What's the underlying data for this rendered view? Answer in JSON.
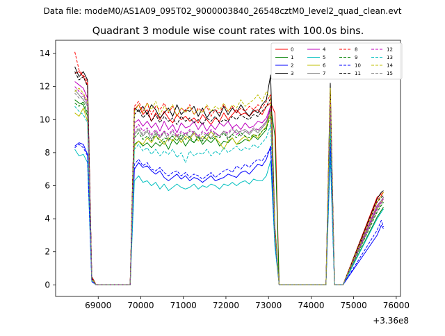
{
  "figure": {
    "suptitle": "Data file: modeM0/AS1A09_095T02_9000003840_26548cztM0_level2_quad_clean.evt"
  },
  "chart_data": {
    "type": "line",
    "title": "Quadrant 3 module wise count rates with 100.0s bins.",
    "xlabel": "",
    "ylabel": "",
    "x_offset_label": "+3.36e8",
    "xlim": [
      68000,
      76100
    ],
    "ylim": [
      -0.7,
      14.8
    ],
    "x_ticks": [
      69000,
      70000,
      71000,
      72000,
      73000,
      74000,
      75000,
      76000
    ],
    "x_tick_labels": [
      "69000",
      "70000",
      "71000",
      "72000",
      "73000",
      "74000",
      "75000",
      "76000"
    ],
    "y_ticks": [
      0,
      2,
      4,
      6,
      8,
      10,
      12,
      14
    ],
    "y_tick_labels": [
      "0",
      "2",
      "4",
      "6",
      "8",
      "10",
      "12",
      "14"
    ],
    "grid": false,
    "legend_position": "top-right",
    "legend_columns": 4,
    "x": [
      68450,
      68550,
      68650,
      68750,
      68850,
      68950,
      69750,
      69850,
      69950,
      70050,
      70150,
      70250,
      70350,
      70450,
      70550,
      70650,
      70750,
      70850,
      70950,
      71050,
      71150,
      71250,
      71350,
      71450,
      71550,
      71650,
      71750,
      71850,
      71950,
      72050,
      72150,
      72250,
      72350,
      72450,
      72550,
      72650,
      72750,
      72850,
      72950,
      73050,
      73150,
      73250,
      74350,
      74450,
      74550,
      74650,
      74750,
      75550,
      75650,
      75700
    ],
    "series": [
      {
        "name": "0",
        "color": "#ff0000",
        "dash": false,
        "values": [
          12.8,
          12.9,
          12.6,
          12.1,
          0.4,
          0.0,
          0.0,
          10.6,
          10.9,
          10.3,
          10.6,
          9.9,
          10.4,
          10.0,
          10.5,
          10.1,
          9.8,
          10.3,
          10.0,
          10.2,
          9.9,
          10.1,
          9.8,
          10.3,
          10.0,
          9.7,
          10.1,
          9.9,
          10.4,
          10.0,
          10.3,
          10.6,
          10.3,
          10.4,
          10.2,
          10.5,
          10.6,
          10.3,
          10.8,
          11.0,
          10.4,
          0.0,
          0.0,
          11.4,
          0.0,
          0.0,
          0.0,
          5.3,
          5.5,
          5.6
        ]
      },
      {
        "name": "1",
        "color": "#008000",
        "dash": false,
        "values": [
          11.2,
          11.0,
          10.9,
          10.2,
          0.3,
          0.0,
          0.0,
          8.5,
          8.7,
          8.4,
          8.6,
          8.3,
          8.6,
          8.4,
          8.7,
          8.2,
          8.8,
          8.5,
          8.9,
          8.4,
          8.8,
          8.6,
          9.0,
          8.5,
          8.8,
          8.6,
          8.9,
          8.4,
          8.7,
          8.6,
          8.9,
          8.5,
          8.6,
          8.8,
          8.7,
          9.0,
          8.8,
          9.1,
          9.4,
          10.9,
          9.0,
          0.0,
          0.0,
          9.2,
          0.0,
          0.0,
          0.0,
          4.1,
          4.5,
          4.7
        ]
      },
      {
        "name": "2",
        "color": "#0000ff",
        "dash": false,
        "values": [
          8.4,
          8.6,
          8.5,
          7.9,
          0.2,
          0.0,
          0.0,
          7.0,
          7.4,
          7.1,
          7.2,
          6.9,
          6.7,
          6.9,
          6.5,
          6.3,
          6.5,
          6.7,
          6.4,
          6.6,
          6.3,
          6.5,
          6.4,
          6.2,
          6.4,
          6.6,
          6.3,
          6.4,
          6.5,
          6.7,
          6.6,
          6.5,
          6.8,
          6.9,
          6.7,
          7.0,
          7.3,
          7.2,
          7.6,
          8.4,
          2.7,
          0.0,
          0.0,
          8.4,
          0.0,
          0.0,
          0.0,
          3.0,
          3.6,
          3.4
        ]
      },
      {
        "name": "3",
        "color": "#000000",
        "dash": false,
        "values": [
          13.2,
          12.6,
          12.9,
          12.4,
          0.5,
          0.0,
          0.0,
          10.7,
          10.5,
          10.8,
          10.3,
          10.9,
          10.6,
          10.1,
          10.4,
          10.7,
          10.2,
          10.9,
          10.3,
          10.6,
          10.5,
          10.8,
          10.2,
          10.7,
          10.1,
          10.5,
          10.6,
          10.2,
          10.8,
          10.3,
          10.7,
          10.4,
          10.9,
          10.5,
          10.2,
          10.6,
          10.4,
          10.9,
          11.2,
          12.7,
          3.5,
          0.0,
          0.0,
          12.2,
          0.0,
          0.0,
          0.0,
          5.2,
          5.6,
          5.7
        ]
      },
      {
        "name": "4",
        "color": "#bf00bf",
        "dash": false,
        "values": [
          12.3,
          12.1,
          11.9,
          11.3,
          0.4,
          0.0,
          0.0,
          9.8,
          10.0,
          9.6,
          9.9,
          9.5,
          9.8,
          9.3,
          9.9,
          9.4,
          9.7,
          9.2,
          9.8,
          9.5,
          9.6,
          9.9,
          9.4,
          9.8,
          9.3,
          9.7,
          9.4,
          9.8,
          9.6,
          9.9,
          9.5,
          9.7,
          9.4,
          9.8,
          9.5,
          9.6,
          9.9,
          9.8,
          10.1,
          10.8,
          3.1,
          0.0,
          0.0,
          11.2,
          0.0,
          0.0,
          0.0,
          4.8,
          5.1,
          5.3
        ]
      },
      {
        "name": "5",
        "color": "#00bfbf",
        "dash": false,
        "values": [
          8.2,
          7.8,
          7.9,
          7.4,
          0.2,
          0.0,
          0.0,
          6.3,
          6.6,
          6.2,
          6.3,
          6.0,
          6.2,
          5.8,
          6.1,
          5.7,
          5.9,
          6.1,
          5.9,
          5.8,
          5.9,
          6.1,
          5.8,
          6.0,
          5.9,
          6.1,
          6.0,
          5.8,
          6.1,
          6.0,
          6.2,
          6.0,
          6.2,
          6.3,
          6.1,
          6.4,
          6.3,
          6.3,
          6.6,
          7.5,
          2.3,
          0.0,
          0.0,
          7.8,
          0.0,
          0.0,
          0.0,
          4.0,
          4.4,
          4.6
        ]
      },
      {
        "name": "6",
        "color": "#bfbf00",
        "dash": false,
        "values": [
          10.4,
          10.2,
          10.7,
          9.9,
          0.3,
          0.0,
          0.0,
          8.4,
          8.7,
          8.5,
          8.9,
          8.6,
          9.0,
          8.8,
          8.5,
          8.9,
          8.7,
          9.1,
          8.6,
          9.0,
          8.8,
          9.2,
          8.7,
          9.0,
          8.8,
          9.3,
          8.9,
          8.6,
          8.2,
          8.7,
          8.9,
          8.5,
          8.8,
          9.0,
          8.7,
          9.1,
          8.9,
          9.3,
          9.6,
          10.4,
          3.0,
          0.0,
          0.0,
          10.5,
          0.0,
          0.0,
          0.0,
          4.6,
          5.0,
          5.2
        ]
      },
      {
        "name": "7",
        "color": "#808080",
        "dash": false,
        "values": [
          11.8,
          11.5,
          11.2,
          10.8,
          0.3,
          0.0,
          0.0,
          9.1,
          9.4,
          9.0,
          9.3,
          8.8,
          9.2,
          8.9,
          9.3,
          8.7,
          9.1,
          9.0,
          8.8,
          9.2,
          8.9,
          9.3,
          9.0,
          8.8,
          9.1,
          8.9,
          9.2,
          9.0,
          9.3,
          8.9,
          9.1,
          9.4,
          9.0,
          9.3,
          9.1,
          9.4,
          9.2,
          9.5,
          9.8,
          10.6,
          3.1,
          0.0,
          0.0,
          10.9,
          0.0,
          0.0,
          0.0,
          4.7,
          5.1,
          5.3
        ]
      },
      {
        "name": "8",
        "color": "#ff0000",
        "dash": true,
        "values": [
          14.1,
          13.0,
          12.7,
          12.3,
          0.5,
          0.0,
          0.0,
          10.8,
          11.1,
          10.5,
          11.0,
          10.3,
          10.8,
          10.6,
          11.0,
          10.4,
          10.8,
          10.2,
          10.7,
          10.5,
          10.9,
          10.3,
          10.7,
          10.5,
          10.8,
          10.2,
          10.6,
          10.4,
          10.9,
          10.5,
          10.8,
          10.4,
          10.7,
          10.5,
          10.8,
          10.6,
          10.9,
          10.7,
          11.1,
          11.5,
          3.4,
          0.0,
          0.0,
          11.8,
          0.0,
          0.0,
          0.0,
          5.1,
          5.4,
          5.6
        ]
      },
      {
        "name": "9",
        "color": "#008000",
        "dash": true,
        "values": [
          11.0,
          10.8,
          11.1,
          10.4,
          0.3,
          0.0,
          0.0,
          8.9,
          9.2,
          8.8,
          9.0,
          8.7,
          9.1,
          8.6,
          8.9,
          8.8,
          9.0,
          8.7,
          9.1,
          8.8,
          9.0,
          8.6,
          8.9,
          8.7,
          9.1,
          8.8,
          9.0,
          8.9,
          9.2,
          8.8,
          9.1,
          8.9,
          9.2,
          9.0,
          8.9,
          9.1,
          9.0,
          9.3,
          9.5,
          10.2,
          3.0,
          0.0,
          0.0,
          10.3,
          0.0,
          0.0,
          0.0,
          4.4,
          4.8,
          5.0
        ]
      },
      {
        "name": "10",
        "color": "#0000ff",
        "dash": true,
        "values": [
          8.3,
          8.5,
          8.3,
          7.8,
          0.2,
          0.0,
          0.0,
          7.3,
          7.6,
          7.2,
          7.4,
          7.0,
          6.9,
          7.1,
          6.8,
          6.6,
          6.8,
          6.9,
          6.6,
          6.8,
          6.5,
          6.7,
          6.6,
          6.4,
          6.6,
          6.8,
          6.5,
          6.7,
          6.9,
          7.0,
          6.8,
          7.2,
          7.0,
          7.3,
          7.1,
          7.4,
          7.6,
          7.5,
          7.9,
          8.2,
          2.6,
          0.0,
          0.0,
          8.6,
          0.0,
          0.0,
          0.0,
          3.3,
          3.9,
          3.5
        ]
      },
      {
        "name": "11",
        "color": "#000000",
        "dash": true,
        "values": [
          12.9,
          12.4,
          12.6,
          12.0,
          0.4,
          0.0,
          0.0,
          10.3,
          10.6,
          10.1,
          10.4,
          9.9,
          10.3,
          9.8,
          10.2,
          9.9,
          10.1,
          9.7,
          10.2,
          9.9,
          10.1,
          9.8,
          10.0,
          9.7,
          10.1,
          9.9,
          10.2,
          9.8,
          10.0,
          9.9,
          10.2,
          10.0,
          10.3,
          10.1,
          10.0,
          10.3,
          10.2,
          10.5,
          10.8,
          11.3,
          3.3,
          0.0,
          0.0,
          11.6,
          0.0,
          0.0,
          0.0,
          5.0,
          5.3,
          5.4
        ]
      },
      {
        "name": "12",
        "color": "#bf00bf",
        "dash": true,
        "values": [
          12.0,
          11.7,
          11.5,
          11.0,
          0.3,
          0.0,
          0.0,
          9.4,
          9.7,
          9.3,
          9.5,
          9.1,
          9.4,
          9.0,
          9.3,
          9.1,
          9.4,
          9.0,
          9.3,
          9.1,
          9.4,
          9.2,
          9.0,
          9.3,
          9.1,
          9.4,
          9.2,
          9.0,
          9.3,
          9.2,
          9.5,
          9.1,
          9.3,
          9.4,
          9.2,
          9.5,
          9.4,
          9.6,
          9.9,
          10.7,
          3.1,
          0.0,
          0.0,
          11.0,
          0.0,
          0.0,
          0.0,
          4.6,
          5.0,
          5.2
        ]
      },
      {
        "name": "13",
        "color": "#00bfbf",
        "dash": true,
        "values": [
          10.8,
          10.5,
          10.3,
          9.8,
          0.3,
          0.0,
          0.0,
          8.2,
          8.5,
          8.1,
          8.3,
          7.9,
          8.2,
          7.8,
          8.1,
          7.9,
          8.2,
          7.7,
          8.0,
          7.4,
          8.1,
          7.8,
          8.0,
          7.9,
          8.2,
          7.8,
          8.1,
          7.9,
          8.3,
          8.0,
          8.2,
          8.4,
          8.1,
          8.3,
          8.2,
          8.5,
          8.3,
          8.6,
          8.9,
          9.7,
          2.8,
          0.0,
          0.0,
          9.5,
          0.0,
          0.0,
          0.0,
          4.0,
          4.4,
          4.6
        ]
      },
      {
        "name": "14",
        "color": "#bfbf00",
        "dash": true,
        "values": [
          11.7,
          11.9,
          11.6,
          11.1,
          0.4,
          0.0,
          0.0,
          10.5,
          10.9,
          10.4,
          11.0,
          10.6,
          11.1,
          10.3,
          10.8,
          10.5,
          10.9,
          10.2,
          10.7,
          10.4,
          10.8,
          10.3,
          10.6,
          10.4,
          10.9,
          10.5,
          10.8,
          10.6,
          11.0,
          10.5,
          10.9,
          10.7,
          11.2,
          10.8,
          11.0,
          11.2,
          11.5,
          11.1,
          11.7,
          11.3,
          3.3,
          0.0,
          0.0,
          11.9,
          0.0,
          0.0,
          0.0,
          5.0,
          5.4,
          5.6
        ]
      },
      {
        "name": "15",
        "color": "#808080",
        "dash": true,
        "values": [
          11.6,
          11.3,
          11.4,
          10.9,
          0.3,
          0.0,
          0.0,
          9.2,
          9.5,
          9.1,
          9.4,
          9.0,
          9.3,
          8.9,
          9.2,
          9.0,
          9.3,
          8.9,
          9.2,
          9.0,
          9.3,
          9.1,
          8.9,
          9.2,
          9.0,
          9.3,
          9.1,
          9.0,
          9.3,
          9.1,
          9.4,
          9.2,
          9.3,
          9.4,
          9.2,
          9.5,
          9.3,
          9.6,
          9.9,
          10.5,
          3.0,
          0.0,
          0.0,
          10.7,
          0.0,
          0.0,
          0.0,
          4.5,
          4.9,
          5.1
        ]
      }
    ]
  }
}
